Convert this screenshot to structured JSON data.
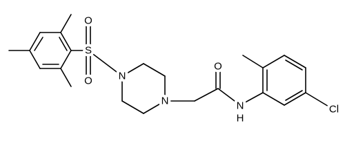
{
  "atoms": [
    "S",
    "O",
    "O",
    "N",
    "N",
    "O",
    "N",
    "H",
    "Cl"
  ]
}
